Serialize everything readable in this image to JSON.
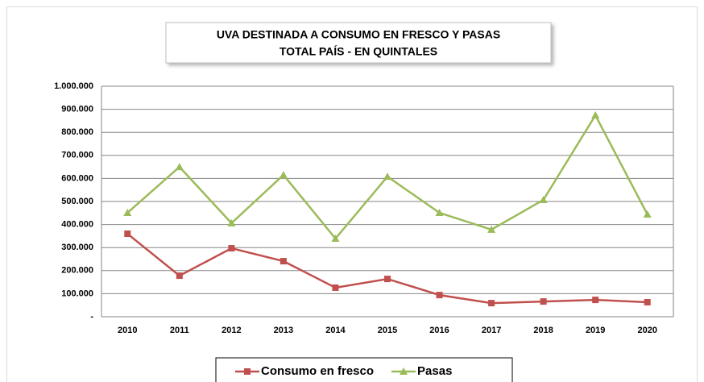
{
  "chart_data": {
    "type": "line",
    "title": "UVA DESTINADA A CONSUMO EN FRESCO Y PASAS",
    "subtitle": "TOTAL PAÍS - EN QUINTALES",
    "categories": [
      "2010",
      "2011",
      "2012",
      "2013",
      "2014",
      "2015",
      "2016",
      "2017",
      "2018",
      "2019",
      "2020"
    ],
    "series": [
      {
        "name": "Consumo en fresco",
        "color": "#c0504d",
        "marker": "square",
        "values": [
          360000,
          178000,
          297000,
          241000,
          126000,
          164000,
          94000,
          59000,
          66000,
          73000,
          63000
        ]
      },
      {
        "name": "Pasas",
        "color": "#9bbb59",
        "marker": "triangle",
        "values": [
          451000,
          650000,
          406000,
          615000,
          339000,
          608000,
          451000,
          378000,
          507000,
          874000,
          444000
        ]
      }
    ],
    "ylim": [
      0,
      1000000
    ],
    "yticks": [
      {
        "value": 0,
        "label": "-"
      },
      {
        "value": 100000,
        "label": "100.000"
      },
      {
        "value": 200000,
        "label": "200.000"
      },
      {
        "value": 300000,
        "label": "300.000"
      },
      {
        "value": 400000,
        "label": "400.000"
      },
      {
        "value": 500000,
        "label": "500.000"
      },
      {
        "value": 600000,
        "label": "600.000"
      },
      {
        "value": 700000,
        "label": "700.000"
      },
      {
        "value": 800000,
        "label": "800.000"
      },
      {
        "value": 900000,
        "label": "900.000"
      },
      {
        "value": 1000000,
        "label": "1.000.000"
      }
    ],
    "grid": true,
    "legend": "bottom"
  }
}
